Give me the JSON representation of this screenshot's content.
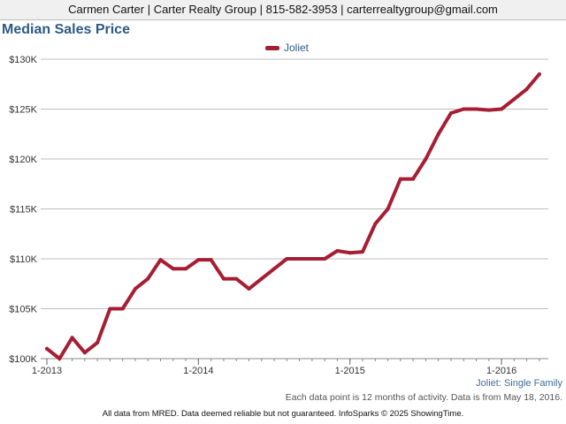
{
  "header": {
    "contact": "Carmen Carter | Carter Realty Group | 815-582-3953 | carterrealtygroup@gmail.com"
  },
  "chart_data": {
    "type": "line",
    "title": "Median Sales Price",
    "xlabel": "",
    "ylabel": "",
    "ylim": [
      100000,
      130000
    ],
    "yticks": [
      100000,
      105000,
      110000,
      115000,
      120000,
      125000,
      130000
    ],
    "ytick_labels": [
      "$100K",
      "$105K",
      "$110K",
      "$115K",
      "$120K",
      "$125K",
      "$130K"
    ],
    "xticks": [
      "1-2013",
      "1-2014",
      "1-2015",
      "1-2016"
    ],
    "x": [
      "1-2013",
      "2-2013",
      "3-2013",
      "4-2013",
      "5-2013",
      "6-2013",
      "7-2013",
      "8-2013",
      "9-2013",
      "10-2013",
      "11-2013",
      "12-2013",
      "1-2014",
      "2-2014",
      "3-2014",
      "4-2014",
      "5-2014",
      "6-2014",
      "7-2014",
      "8-2014",
      "9-2014",
      "10-2014",
      "11-2014",
      "12-2014",
      "1-2015",
      "2-2015",
      "3-2015",
      "4-2015",
      "5-2015",
      "6-2015",
      "7-2015",
      "8-2015",
      "9-2015",
      "10-2015",
      "11-2015",
      "12-2015",
      "1-2016",
      "2-2016",
      "3-2016",
      "4-2016"
    ],
    "grid": true,
    "legend_position": "top-center",
    "series": [
      {
        "name": "Joliet",
        "color": "#a61e33",
        "values": [
          101000,
          100000,
          102100,
          100600,
          101600,
          105000,
          105000,
          107000,
          108000,
          109900,
          109000,
          109000,
          109900,
          109900,
          108000,
          108000,
          107000,
          108000,
          109000,
          110000,
          110000,
          110000,
          110000,
          110800,
          110600,
          110700,
          113500,
          115000,
          118000,
          118000,
          120000,
          122500,
          124600,
          125000,
          125000,
          124900,
          125000,
          126000,
          127000,
          128500
        ]
      }
    ]
  },
  "series_caption": "Joliet: Single Family",
  "footnote": "Each data point is 12 months of activity. Data is from May 18, 2016.",
  "disclaimer": "All data from MRED. Data deemed reliable but not guaranteed. InfoSparks © 2025 ShowingTime."
}
